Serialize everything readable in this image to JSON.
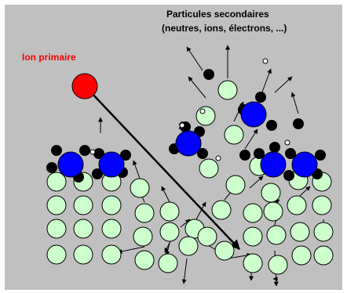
{
  "labels": {
    "secondary_title": "Particules secondaires",
    "secondary_subtitle": "(neutres, ions, électrons, ...)",
    "primary_ion": "Ion primaire"
  }
}
